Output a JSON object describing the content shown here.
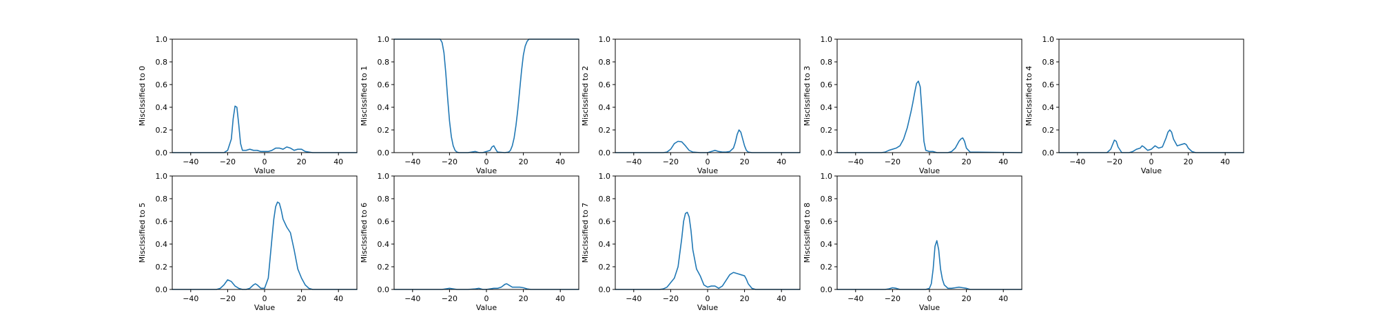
{
  "chart_data": [
    {
      "type": "line",
      "xlabel": "Value",
      "ylabel": "Misclssified to 0",
      "xlim": [
        -50,
        50
      ],
      "ylim": [
        0,
        1
      ],
      "xticks": [
        -40,
        -20,
        0,
        20,
        40
      ],
      "yticks": [
        0.0,
        0.2,
        0.4,
        0.6,
        0.8,
        1.0
      ],
      "color": "#1f77b4",
      "x": [
        -50,
        -22,
        -20,
        -18,
        -17,
        -16,
        -15,
        -14,
        -13,
        -12,
        -10,
        -8,
        -6,
        -4,
        -2,
        0,
        2,
        4,
        6,
        8,
        10,
        12,
        14,
        16,
        18,
        20,
        22,
        24,
        26,
        50
      ],
      "y": [
        0,
        0,
        0.02,
        0.12,
        0.3,
        0.41,
        0.4,
        0.25,
        0.08,
        0.02,
        0.02,
        0.03,
        0.02,
        0.02,
        0.01,
        0.01,
        0.01,
        0.02,
        0.04,
        0.04,
        0.03,
        0.05,
        0.04,
        0.02,
        0.03,
        0.03,
        0.01,
        0.005,
        0,
        0
      ]
    },
    {
      "type": "line",
      "xlabel": "Value",
      "ylabel": "Misclssified to 1",
      "xlim": [
        -50,
        50
      ],
      "ylim": [
        0,
        1
      ],
      "xticks": [
        -40,
        -20,
        0,
        20,
        40
      ],
      "yticks": [
        0.0,
        0.2,
        0.4,
        0.6,
        0.8,
        1.0
      ],
      "color": "#1f77b4",
      "x": [
        -50,
        -26,
        -25,
        -24,
        -23,
        -22,
        -21,
        -20,
        -19,
        -18,
        -17,
        -16,
        -15,
        -12,
        -10,
        -8,
        -6,
        -4,
        -2,
        0,
        2,
        3,
        4,
        5,
        6,
        10,
        12,
        13,
        14,
        15,
        16,
        17,
        18,
        19,
        20,
        21,
        22,
        23,
        24,
        25,
        26,
        50
      ],
      "y": [
        1.0,
        1.0,
        1.0,
        0.97,
        0.88,
        0.7,
        0.48,
        0.28,
        0.14,
        0.06,
        0.02,
        0.005,
        0,
        0,
        0,
        0.005,
        0.01,
        0,
        0,
        0.01,
        0.02,
        0.05,
        0.06,
        0.03,
        0.005,
        0,
        0.005,
        0.02,
        0.06,
        0.13,
        0.24,
        0.38,
        0.55,
        0.72,
        0.86,
        0.94,
        0.98,
        1.0,
        1.0,
        1.0,
        1.0,
        1.0
      ]
    },
    {
      "type": "line",
      "xlabel": "Value",
      "ylabel": "Misclssified to 2",
      "xlim": [
        -50,
        50
      ],
      "ylim": [
        0,
        1
      ],
      "xticks": [
        -40,
        -20,
        0,
        20,
        40
      ],
      "yticks": [
        0.0,
        0.2,
        0.4,
        0.6,
        0.8,
        1.0
      ],
      "color": "#1f77b4",
      "x": [
        -50,
        -24,
        -22,
        -20,
        -18,
        -16,
        -14,
        -12,
        -10,
        -8,
        -4,
        0,
        2,
        4,
        6,
        8,
        10,
        12,
        14,
        15,
        16,
        17,
        18,
        19,
        20,
        21,
        22,
        24,
        50
      ],
      "y": [
        0,
        0,
        0.005,
        0.03,
        0.08,
        0.1,
        0.095,
        0.06,
        0.02,
        0.005,
        0,
        0,
        0.01,
        0.02,
        0.01,
        0.005,
        0.005,
        0.01,
        0.04,
        0.09,
        0.16,
        0.2,
        0.18,
        0.12,
        0.06,
        0.02,
        0.005,
        0,
        0
      ]
    },
    {
      "type": "line",
      "xlabel": "Value",
      "ylabel": "Misclssified to 3",
      "xlim": [
        -50,
        50
      ],
      "ylim": [
        0,
        1
      ],
      "xticks": [
        -40,
        -20,
        0,
        20,
        40
      ],
      "yticks": [
        0.0,
        0.2,
        0.4,
        0.6,
        0.8,
        1.0
      ],
      "color": "#1f77b4",
      "x": [
        -50,
        -26,
        -24,
        -22,
        -20,
        -18,
        -16,
        -14,
        -12,
        -10,
        -9,
        -8,
        -7,
        -6,
        -5,
        -4,
        -3,
        -2,
        0,
        2,
        4,
        10,
        12,
        14,
        16,
        17,
        18,
        19,
        20,
        22,
        50
      ],
      "y": [
        0,
        0,
        0.005,
        0.02,
        0.03,
        0.04,
        0.06,
        0.12,
        0.22,
        0.36,
        0.44,
        0.53,
        0.61,
        0.63,
        0.58,
        0.35,
        0.1,
        0.02,
        0.01,
        0.01,
        0,
        0,
        0.01,
        0.04,
        0.1,
        0.12,
        0.13,
        0.1,
        0.04,
        0.005,
        0
      ]
    },
    {
      "type": "line",
      "xlabel": "Value",
      "ylabel": "Misclssified to 4",
      "xlim": [
        -50,
        50
      ],
      "ylim": [
        0,
        1
      ],
      "xticks": [
        -40,
        -20,
        0,
        20,
        40
      ],
      "yticks": [
        0.0,
        0.2,
        0.4,
        0.6,
        0.8,
        1.0
      ],
      "color": "#1f77b4",
      "x": [
        -50,
        -24,
        -22,
        -21,
        -20,
        -19,
        -18,
        -16,
        -14,
        -12,
        -10,
        -8,
        -6,
        -5,
        -4,
        -2,
        0,
        2,
        4,
        6,
        8,
        9,
        10,
        11,
        12,
        14,
        16,
        18,
        19,
        20,
        22,
        24,
        50
      ],
      "y": [
        0,
        0,
        0.03,
        0.07,
        0.11,
        0.1,
        0.05,
        0,
        0,
        0,
        0.01,
        0.03,
        0.04,
        0.06,
        0.05,
        0.02,
        0.03,
        0.06,
        0.04,
        0.05,
        0.13,
        0.18,
        0.2,
        0.18,
        0.12,
        0.06,
        0.07,
        0.08,
        0.07,
        0.04,
        0.01,
        0,
        0
      ]
    },
    {
      "type": "line",
      "xlabel": "Value",
      "ylabel": "Misclssified to 5",
      "xlim": [
        -50,
        50
      ],
      "ylim": [
        0,
        1
      ],
      "xticks": [
        -40,
        -20,
        0,
        20,
        40
      ],
      "yticks": [
        0.0,
        0.2,
        0.4,
        0.6,
        0.8,
        1.0
      ],
      "color": "#1f77b4",
      "x": [
        -50,
        -26,
        -24,
        -22,
        -20,
        -18,
        -16,
        -14,
        -12,
        -10,
        -8,
        -6,
        -5,
        -4,
        -2,
        0,
        2,
        4,
        5,
        6,
        7,
        8,
        9,
        10,
        12,
        14,
        16,
        18,
        20,
        22,
        24,
        26,
        50
      ],
      "y": [
        0,
        0,
        0.01,
        0.04,
        0.085,
        0.07,
        0.03,
        0.01,
        0,
        0,
        0.01,
        0.04,
        0.05,
        0.04,
        0.01,
        0.01,
        0.1,
        0.45,
        0.62,
        0.73,
        0.77,
        0.76,
        0.7,
        0.62,
        0.55,
        0.5,
        0.35,
        0.18,
        0.1,
        0.04,
        0.01,
        0,
        0
      ]
    },
    {
      "type": "line",
      "xlabel": "Value",
      "ylabel": "Misclssified to 6",
      "xlim": [
        -50,
        50
      ],
      "ylim": [
        0,
        1
      ],
      "xticks": [
        -40,
        -20,
        0,
        20,
        40
      ],
      "yticks": [
        0.0,
        0.2,
        0.4,
        0.6,
        0.8,
        1.0
      ],
      "color": "#1f77b4",
      "x": [
        -50,
        -24,
        -22,
        -20,
        -18,
        -16,
        -10,
        -6,
        -4,
        -2,
        0,
        2,
        4,
        6,
        8,
        10,
        11,
        12,
        14,
        16,
        18,
        20,
        22,
        24,
        50
      ],
      "y": [
        0,
        0,
        0.005,
        0.01,
        0.005,
        0,
        0,
        0.005,
        0.01,
        0,
        0,
        0.005,
        0.01,
        0.01,
        0.02,
        0.045,
        0.05,
        0.04,
        0.02,
        0.02,
        0.02,
        0.015,
        0.005,
        0,
        0
      ]
    },
    {
      "type": "line",
      "xlabel": "Value",
      "ylabel": "Misclssified to 7",
      "xlim": [
        -50,
        50
      ],
      "ylim": [
        0,
        1
      ],
      "xticks": [
        -40,
        -20,
        0,
        20,
        40
      ],
      "yticks": [
        0.0,
        0.2,
        0.4,
        0.6,
        0.8,
        1.0
      ],
      "color": "#1f77b4",
      "x": [
        -50,
        -26,
        -24,
        -22,
        -20,
        -18,
        -16,
        -14,
        -13,
        -12,
        -11,
        -10,
        -9,
        -8,
        -6,
        -4,
        -2,
        0,
        2,
        4,
        6,
        8,
        10,
        12,
        14,
        16,
        18,
        20,
        21,
        22,
        24,
        26,
        50
      ],
      "y": [
        0,
        0,
        0.005,
        0.02,
        0.06,
        0.1,
        0.2,
        0.45,
        0.6,
        0.67,
        0.68,
        0.64,
        0.52,
        0.35,
        0.18,
        0.12,
        0.04,
        0.02,
        0.03,
        0.03,
        0.01,
        0.03,
        0.08,
        0.13,
        0.15,
        0.14,
        0.13,
        0.12,
        0.09,
        0.05,
        0.01,
        0,
        0
      ]
    },
    {
      "type": "line",
      "xlabel": "Value",
      "ylabel": "Misclssified to 8",
      "xlim": [
        -50,
        50
      ],
      "ylim": [
        0,
        1
      ],
      "xticks": [
        -40,
        -20,
        0,
        20,
        40
      ],
      "yticks": [
        0.0,
        0.2,
        0.4,
        0.6,
        0.8,
        1.0
      ],
      "color": "#1f77b4",
      "x": [
        -50,
        -24,
        -22,
        -20,
        -18,
        -16,
        -10,
        -2,
        0,
        1,
        2,
        3,
        4,
        5,
        6,
        7,
        8,
        10,
        12,
        14,
        16,
        18,
        20,
        22,
        50
      ],
      "y": [
        0,
        0,
        0.005,
        0.015,
        0.01,
        0,
        0,
        0,
        0.01,
        0.05,
        0.18,
        0.38,
        0.43,
        0.35,
        0.18,
        0.09,
        0.04,
        0.01,
        0.01,
        0.015,
        0.02,
        0.015,
        0.01,
        0,
        0
      ]
    }
  ]
}
